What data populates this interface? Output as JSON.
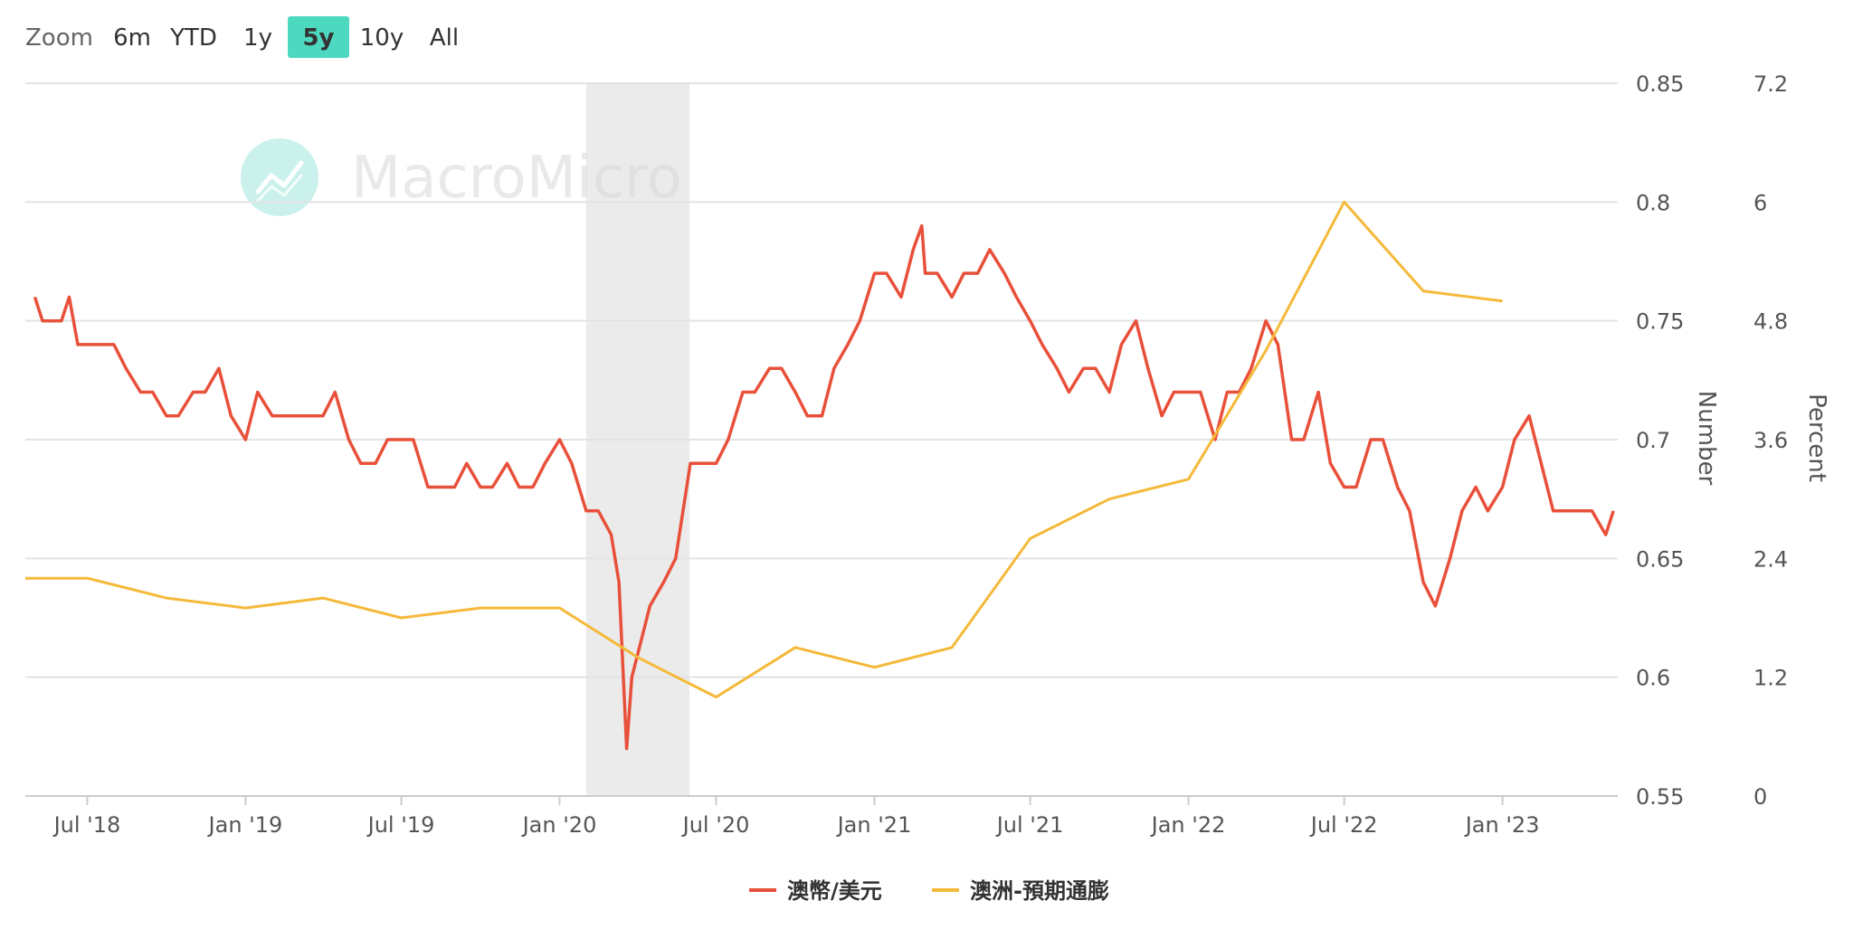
{
  "zoom": {
    "label": "Zoom",
    "buttons": [
      "6m",
      "YTD",
      "1y",
      "5y",
      "10y",
      "All"
    ],
    "selected": "5y",
    "selected_color": "#4dd9c0"
  },
  "watermark": {
    "text": "MacroMicro",
    "icon": "chart-trend-icon",
    "color": "#5fd6c4"
  },
  "chart_data": {
    "type": "line",
    "x_ticks": [
      "Jul '18",
      "Jan '19",
      "Jul '19",
      "Jan '20",
      "Jul '20",
      "Jan '21",
      "Jul '21",
      "Jan '22",
      "Jul '22",
      "Jan '23"
    ],
    "xlim": [
      "2018-04-20",
      "2023-05-15"
    ],
    "left_axis": {
      "title": "Number",
      "ticks": [
        "0.85",
        "0.8",
        "0.75",
        "0.7",
        "0.65",
        "0.6",
        "0.55"
      ],
      "ylim": [
        0.55,
        0.85
      ]
    },
    "right_axis": {
      "title": "Percent",
      "ticks": [
        "7.2",
        "6",
        "4.8",
        "3.6",
        "2.4",
        "1.2",
        "0"
      ],
      "ylim": [
        0,
        7.2
      ]
    },
    "shaded_region": {
      "from": "2020-02-01",
      "to": "2020-05-31",
      "color": "#ebebeb"
    },
    "grid": true,
    "legend_position": "bottom-center",
    "series": [
      {
        "name": "澳幣/美元",
        "color": "#e8503a",
        "axis": "left",
        "points": [
          [
            "2018-05-01",
            0.76
          ],
          [
            "2018-05-10",
            0.75
          ],
          [
            "2018-06-01",
            0.75
          ],
          [
            "2018-06-10",
            0.76
          ],
          [
            "2018-06-20",
            0.74
          ],
          [
            "2018-07-01",
            0.74
          ],
          [
            "2018-07-15",
            0.74
          ],
          [
            "2018-08-01",
            0.74
          ],
          [
            "2018-08-15",
            0.73
          ],
          [
            "2018-09-01",
            0.72
          ],
          [
            "2018-09-15",
            0.72
          ],
          [
            "2018-10-01",
            0.71
          ],
          [
            "2018-10-15",
            0.71
          ],
          [
            "2018-11-01",
            0.72
          ],
          [
            "2018-11-15",
            0.72
          ],
          [
            "2018-12-01",
            0.73
          ],
          [
            "2018-12-15",
            0.71
          ],
          [
            "2019-01-01",
            0.7
          ],
          [
            "2019-01-15",
            0.72
          ],
          [
            "2019-02-01",
            0.71
          ],
          [
            "2019-02-15",
            0.71
          ],
          [
            "2019-03-01",
            0.71
          ],
          [
            "2019-03-15",
            0.71
          ],
          [
            "2019-04-01",
            0.71
          ],
          [
            "2019-04-15",
            0.72
          ],
          [
            "2019-05-01",
            0.7
          ],
          [
            "2019-05-15",
            0.69
          ],
          [
            "2019-06-01",
            0.69
          ],
          [
            "2019-06-15",
            0.7
          ],
          [
            "2019-07-01",
            0.7
          ],
          [
            "2019-07-15",
            0.7
          ],
          [
            "2019-08-01",
            0.68
          ],
          [
            "2019-08-15",
            0.68
          ],
          [
            "2019-09-01",
            0.68
          ],
          [
            "2019-09-15",
            0.69
          ],
          [
            "2019-10-01",
            0.68
          ],
          [
            "2019-10-15",
            0.68
          ],
          [
            "2019-11-01",
            0.69
          ],
          [
            "2019-11-15",
            0.68
          ],
          [
            "2019-12-01",
            0.68
          ],
          [
            "2019-12-15",
            0.69
          ],
          [
            "2020-01-01",
            0.7
          ],
          [
            "2020-01-15",
            0.69
          ],
          [
            "2020-02-01",
            0.67
          ],
          [
            "2020-02-15",
            0.67
          ],
          [
            "2020-03-01",
            0.66
          ],
          [
            "2020-03-10",
            0.64
          ],
          [
            "2020-03-19",
            0.57
          ],
          [
            "2020-03-25",
            0.6
          ],
          [
            "2020-04-01",
            0.61
          ],
          [
            "2020-04-15",
            0.63
          ],
          [
            "2020-05-01",
            0.64
          ],
          [
            "2020-05-15",
            0.65
          ],
          [
            "2020-06-01",
            0.69
          ],
          [
            "2020-06-15",
            0.69
          ],
          [
            "2020-07-01",
            0.69
          ],
          [
            "2020-07-15",
            0.7
          ],
          [
            "2020-08-01",
            0.72
          ],
          [
            "2020-08-15",
            0.72
          ],
          [
            "2020-09-01",
            0.73
          ],
          [
            "2020-09-15",
            0.73
          ],
          [
            "2020-10-01",
            0.72
          ],
          [
            "2020-10-15",
            0.71
          ],
          [
            "2020-11-01",
            0.71
          ],
          [
            "2020-11-15",
            0.73
          ],
          [
            "2020-12-01",
            0.74
          ],
          [
            "2020-12-15",
            0.75
          ],
          [
            "2021-01-01",
            0.77
          ],
          [
            "2021-01-15",
            0.77
          ],
          [
            "2021-02-01",
            0.76
          ],
          [
            "2021-02-15",
            0.78
          ],
          [
            "2021-02-25",
            0.79
          ],
          [
            "2021-03-01",
            0.77
          ],
          [
            "2021-03-15",
            0.77
          ],
          [
            "2021-04-01",
            0.76
          ],
          [
            "2021-04-15",
            0.77
          ],
          [
            "2021-05-01",
            0.77
          ],
          [
            "2021-05-15",
            0.78
          ],
          [
            "2021-06-01",
            0.77
          ],
          [
            "2021-06-15",
            0.76
          ],
          [
            "2021-07-01",
            0.75
          ],
          [
            "2021-07-15",
            0.74
          ],
          [
            "2021-08-01",
            0.73
          ],
          [
            "2021-08-15",
            0.72
          ],
          [
            "2021-09-01",
            0.73
          ],
          [
            "2021-09-15",
            0.73
          ],
          [
            "2021-10-01",
            0.72
          ],
          [
            "2021-10-15",
            0.74
          ],
          [
            "2021-11-01",
            0.75
          ],
          [
            "2021-11-15",
            0.73
          ],
          [
            "2021-12-01",
            0.71
          ],
          [
            "2021-12-15",
            0.72
          ],
          [
            "2022-01-01",
            0.72
          ],
          [
            "2022-01-15",
            0.72
          ],
          [
            "2022-02-01",
            0.7
          ],
          [
            "2022-02-15",
            0.72
          ],
          [
            "2022-03-01",
            0.72
          ],
          [
            "2022-03-15",
            0.73
          ],
          [
            "2022-04-01",
            0.75
          ],
          [
            "2022-04-15",
            0.74
          ],
          [
            "2022-05-01",
            0.7
          ],
          [
            "2022-05-15",
            0.7
          ],
          [
            "2022-06-01",
            0.72
          ],
          [
            "2022-06-15",
            0.69
          ],
          [
            "2022-07-01",
            0.68
          ],
          [
            "2022-07-15",
            0.68
          ],
          [
            "2022-08-01",
            0.7
          ],
          [
            "2022-08-15",
            0.7
          ],
          [
            "2022-09-01",
            0.68
          ],
          [
            "2022-09-15",
            0.67
          ],
          [
            "2022-10-01",
            0.64
          ],
          [
            "2022-10-15",
            0.63
          ],
          [
            "2022-11-01",
            0.65
          ],
          [
            "2022-11-15",
            0.67
          ],
          [
            "2022-12-01",
            0.68
          ],
          [
            "2022-12-15",
            0.67
          ],
          [
            "2023-01-01",
            0.68
          ],
          [
            "2023-01-15",
            0.7
          ],
          [
            "2023-02-01",
            0.71
          ],
          [
            "2023-02-15",
            0.69
          ],
          [
            "2023-03-01",
            0.67
          ],
          [
            "2023-03-15",
            0.67
          ],
          [
            "2023-04-01",
            0.67
          ],
          [
            "2023-04-15",
            0.67
          ],
          [
            "2023-05-01",
            0.66
          ],
          [
            "2023-05-10",
            0.67
          ]
        ]
      },
      {
        "name": "澳洲-預期通膨",
        "color": "#f5b93a",
        "axis": "right",
        "points": [
          [
            "2018-04-20",
            2.2
          ],
          [
            "2018-07-01",
            2.2
          ],
          [
            "2018-10-01",
            2.0
          ],
          [
            "2019-01-01",
            1.9
          ],
          [
            "2019-04-01",
            2.0
          ],
          [
            "2019-07-01",
            1.8
          ],
          [
            "2019-10-01",
            1.9
          ],
          [
            "2020-01-01",
            1.9
          ],
          [
            "2020-04-01",
            1.4
          ],
          [
            "2020-07-01",
            1.0
          ],
          [
            "2020-10-01",
            1.5
          ],
          [
            "2021-01-01",
            1.3
          ],
          [
            "2021-04-01",
            1.5
          ],
          [
            "2021-07-01",
            2.6
          ],
          [
            "2021-10-01",
            3.0
          ],
          [
            "2022-01-01",
            3.2
          ],
          [
            "2022-04-01",
            4.5
          ],
          [
            "2022-07-01",
            6.0
          ],
          [
            "2022-10-01",
            5.1
          ],
          [
            "2023-01-01",
            5.0
          ]
        ]
      }
    ]
  }
}
